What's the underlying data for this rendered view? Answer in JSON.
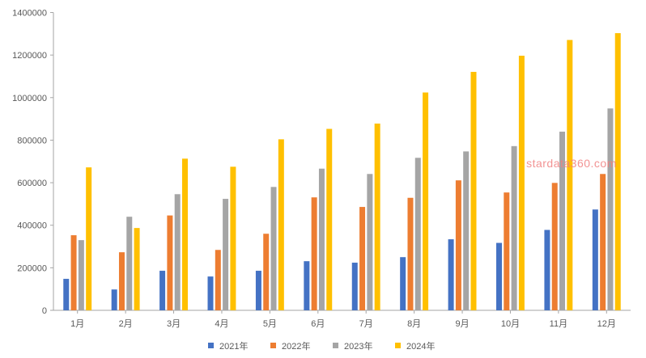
{
  "chart_data": {
    "type": "bar",
    "title": "",
    "xlabel": "",
    "ylabel": "",
    "ylim": [
      0,
      1400000
    ],
    "yticks": [
      "0",
      "200000",
      "400000",
      "600000",
      "800000",
      "1000000",
      "1200000",
      "1400000"
    ],
    "grid": false,
    "legend_position": "bottom",
    "categories": [
      "1月",
      "2月",
      "3月",
      "4月",
      "5月",
      "6月",
      "7月",
      "8月",
      "9月",
      "10月",
      "11月",
      "12月"
    ],
    "series": [
      {
        "name": "2021年",
        "color": "#4472c4",
        "values": [
          148000,
          98000,
          186000,
          159000,
          186000,
          231000,
          224000,
          250000,
          334000,
          317000,
          378000,
          474000
        ]
      },
      {
        "name": "2022年",
        "color": "#ed7d31",
        "values": [
          353000,
          273000,
          446000,
          284000,
          360000,
          531000,
          486000,
          529000,
          611000,
          554000,
          599000,
          641000
        ]
      },
      {
        "name": "2023年",
        "color": "#a5a5a5",
        "values": [
          330000,
          440000,
          546000,
          524000,
          580000,
          666000,
          641000,
          717000,
          747000,
          772000,
          840000,
          949000
        ]
      },
      {
        "name": "2024年",
        "color": "#ffc000",
        "values": [
          672000,
          387000,
          713000,
          675000,
          804000,
          853000,
          878000,
          1024000,
          1121000,
          1197000,
          1271000,
          1303000
        ]
      }
    ],
    "watermark": "stardata360.com"
  }
}
